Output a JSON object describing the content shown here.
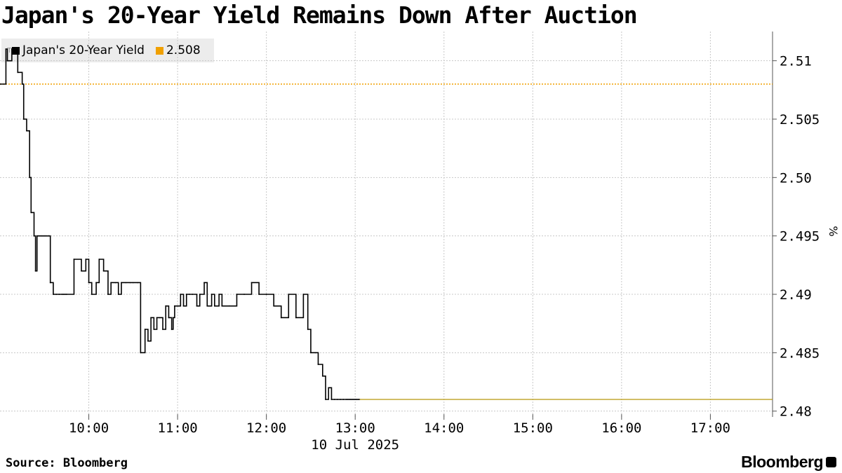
{
  "title": "Japan's 20-Year Yield Remains Down After Auction",
  "legend": [
    {
      "label": "Japan's 20-Year Yield",
      "color": "#000000"
    },
    {
      "label": "2.508",
      "color": "#f0a000"
    }
  ],
  "footer": {
    "source": "Source: Bloomberg",
    "brand": "Bloomberg"
  },
  "chart_data": {
    "type": "line",
    "date_label": "10 Jul 2025",
    "xlabel": "",
    "ylabel": "%",
    "x_ticks": [
      "10:00",
      "11:00",
      "12:00",
      "13:00",
      "14:00",
      "15:00",
      "16:00",
      "17:00"
    ],
    "y_ticks": [
      "2.48",
      "2.485",
      "2.49",
      "2.495",
      "2.50",
      "2.505",
      "2.51"
    ],
    "ylim": [
      2.4795,
      2.5125
    ],
    "xlim": [
      "09:00",
      "17:42"
    ],
    "grid": true,
    "reference_line": {
      "label": "2.508",
      "value": 2.508,
      "color": "#f0a000"
    },
    "series": [
      {
        "name": "Japan's 20-Year Yield",
        "color": "#000000",
        "x": [
          "09:00",
          "09:04",
          "09:05",
          "09:08",
          "09:12",
          "09:15",
          "09:16",
          "09:18",
          "09:19",
          "09:20",
          "09:21",
          "09:23",
          "09:24",
          "09:25",
          "09:26",
          "09:27",
          "09:28",
          "09:29",
          "09:30",
          "09:31",
          "09:33",
          "09:34",
          "09:36",
          "09:38",
          "09:40",
          "09:42",
          "09:43",
          "09:44",
          "09:45",
          "09:50",
          "09:55",
          "09:58",
          "10:00",
          "10:02",
          "10:05",
          "10:07",
          "10:10",
          "10:13",
          "10:15",
          "10:18",
          "10:20",
          "10:22",
          "10:25",
          "10:28",
          "10:30",
          "10:33",
          "10:35",
          "10:38",
          "10:40",
          "10:42",
          "10:44",
          "10:46",
          "10:48",
          "10:50",
          "10:52",
          "10:54",
          "10:55",
          "10:56",
          "10:57",
          "10:58",
          "11:00",
          "11:02",
          "11:04",
          "11:06",
          "11:08",
          "11:10",
          "11:13",
          "11:15",
          "11:18",
          "11:20",
          "11:23",
          "11:25",
          "11:28",
          "11:30",
          "11:35",
          "11:40",
          "11:45",
          "11:50",
          "11:55",
          "12:00",
          "12:05",
          "12:10",
          "12:15",
          "12:20",
          "12:25",
          "12:28",
          "12:30",
          "12:33",
          "12:35",
          "12:38",
          "12:40",
          "12:42",
          "12:44",
          "12:46",
          "12:48",
          "12:50",
          "12:52",
          "12:54",
          "12:55",
          "12:56",
          "12:57",
          "12:58",
          "12:59",
          "13:00",
          "13:01",
          "13:02",
          "13:03"
        ],
        "y": [
          2.508,
          2.511,
          2.51,
          2.511,
          2.509,
          2.508,
          2.505,
          2.504,
          2.504,
          2.5,
          2.497,
          2.495,
          2.492,
          2.495,
          2.495,
          2.495,
          2.495,
          2.495,
          2.495,
          2.495,
          2.495,
          2.491,
          2.49,
          2.49,
          2.49,
          2.49,
          2.49,
          2.49,
          2.49,
          2.493,
          2.492,
          2.493,
          2.491,
          2.49,
          2.491,
          2.493,
          2.492,
          2.49,
          2.491,
          2.491,
          2.49,
          2.491,
          2.491,
          2.491,
          2.491,
          2.491,
          2.485,
          2.487,
          2.486,
          2.488,
          2.487,
          2.488,
          2.488,
          2.487,
          2.489,
          2.488,
          2.488,
          2.487,
          2.488,
          2.489,
          2.489,
          2.49,
          2.489,
          2.49,
          2.49,
          2.49,
          2.489,
          2.49,
          2.491,
          2.489,
          2.49,
          2.489,
          2.49,
          2.489,
          2.489,
          2.49,
          2.49,
          2.491,
          2.49,
          2.49,
          2.489,
          2.488,
          2.49,
          2.488,
          2.49,
          2.487,
          2.485,
          2.485,
          2.484,
          2.483,
          2.481,
          2.482,
          2.481,
          2.481,
          2.481,
          2.481,
          2.481,
          2.481,
          2.481,
          2.481,
          2.481,
          2.481,
          2.481,
          2.481,
          2.481,
          2.481,
          2.481
        ]
      }
    ]
  }
}
